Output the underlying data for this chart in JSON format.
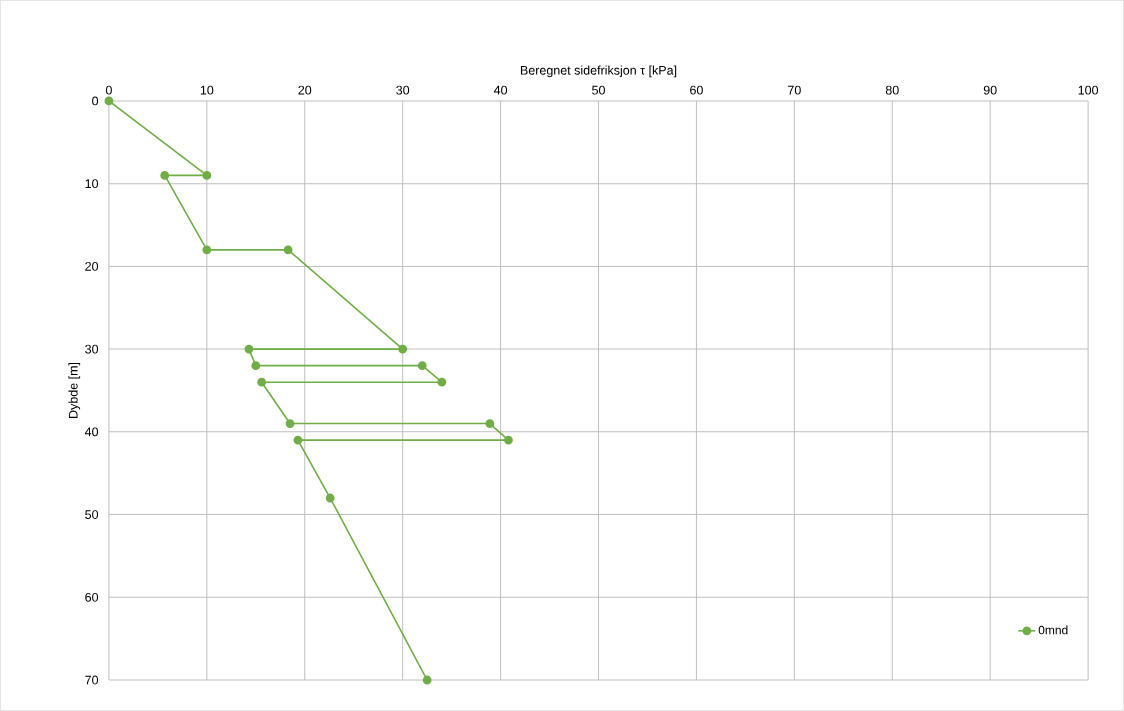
{
  "chart_data": {
    "type": "line",
    "xlabel": "Beregnet sidefriksjon τ [kPa]",
    "ylabel": "Dybde [m]",
    "series": [
      {
        "name": "0mnd",
        "color": "#70ad47",
        "x": [
          0,
          10,
          5.7,
          10,
          18.3,
          30,
          14.3,
          15,
          32,
          34,
          15.6,
          18.5,
          38.9,
          40.8,
          19.3,
          22.6,
          32.5
        ],
        "values": [
          0,
          9,
          9,
          18,
          18,
          30,
          30,
          32,
          32,
          34,
          34,
          39,
          39,
          41,
          41,
          48,
          70
        ]
      }
    ],
    "xlim": [
      0,
      100
    ],
    "xticks": [
      0,
      10,
      20,
      30,
      40,
      50,
      60,
      70,
      80,
      90,
      100
    ],
    "ylim": [
      70,
      0
    ],
    "yticks": [
      0,
      10,
      20,
      30,
      40,
      50,
      60,
      70
    ],
    "grid": true,
    "legend": "bottom right",
    "marker": "circle",
    "line_style": "solid"
  }
}
